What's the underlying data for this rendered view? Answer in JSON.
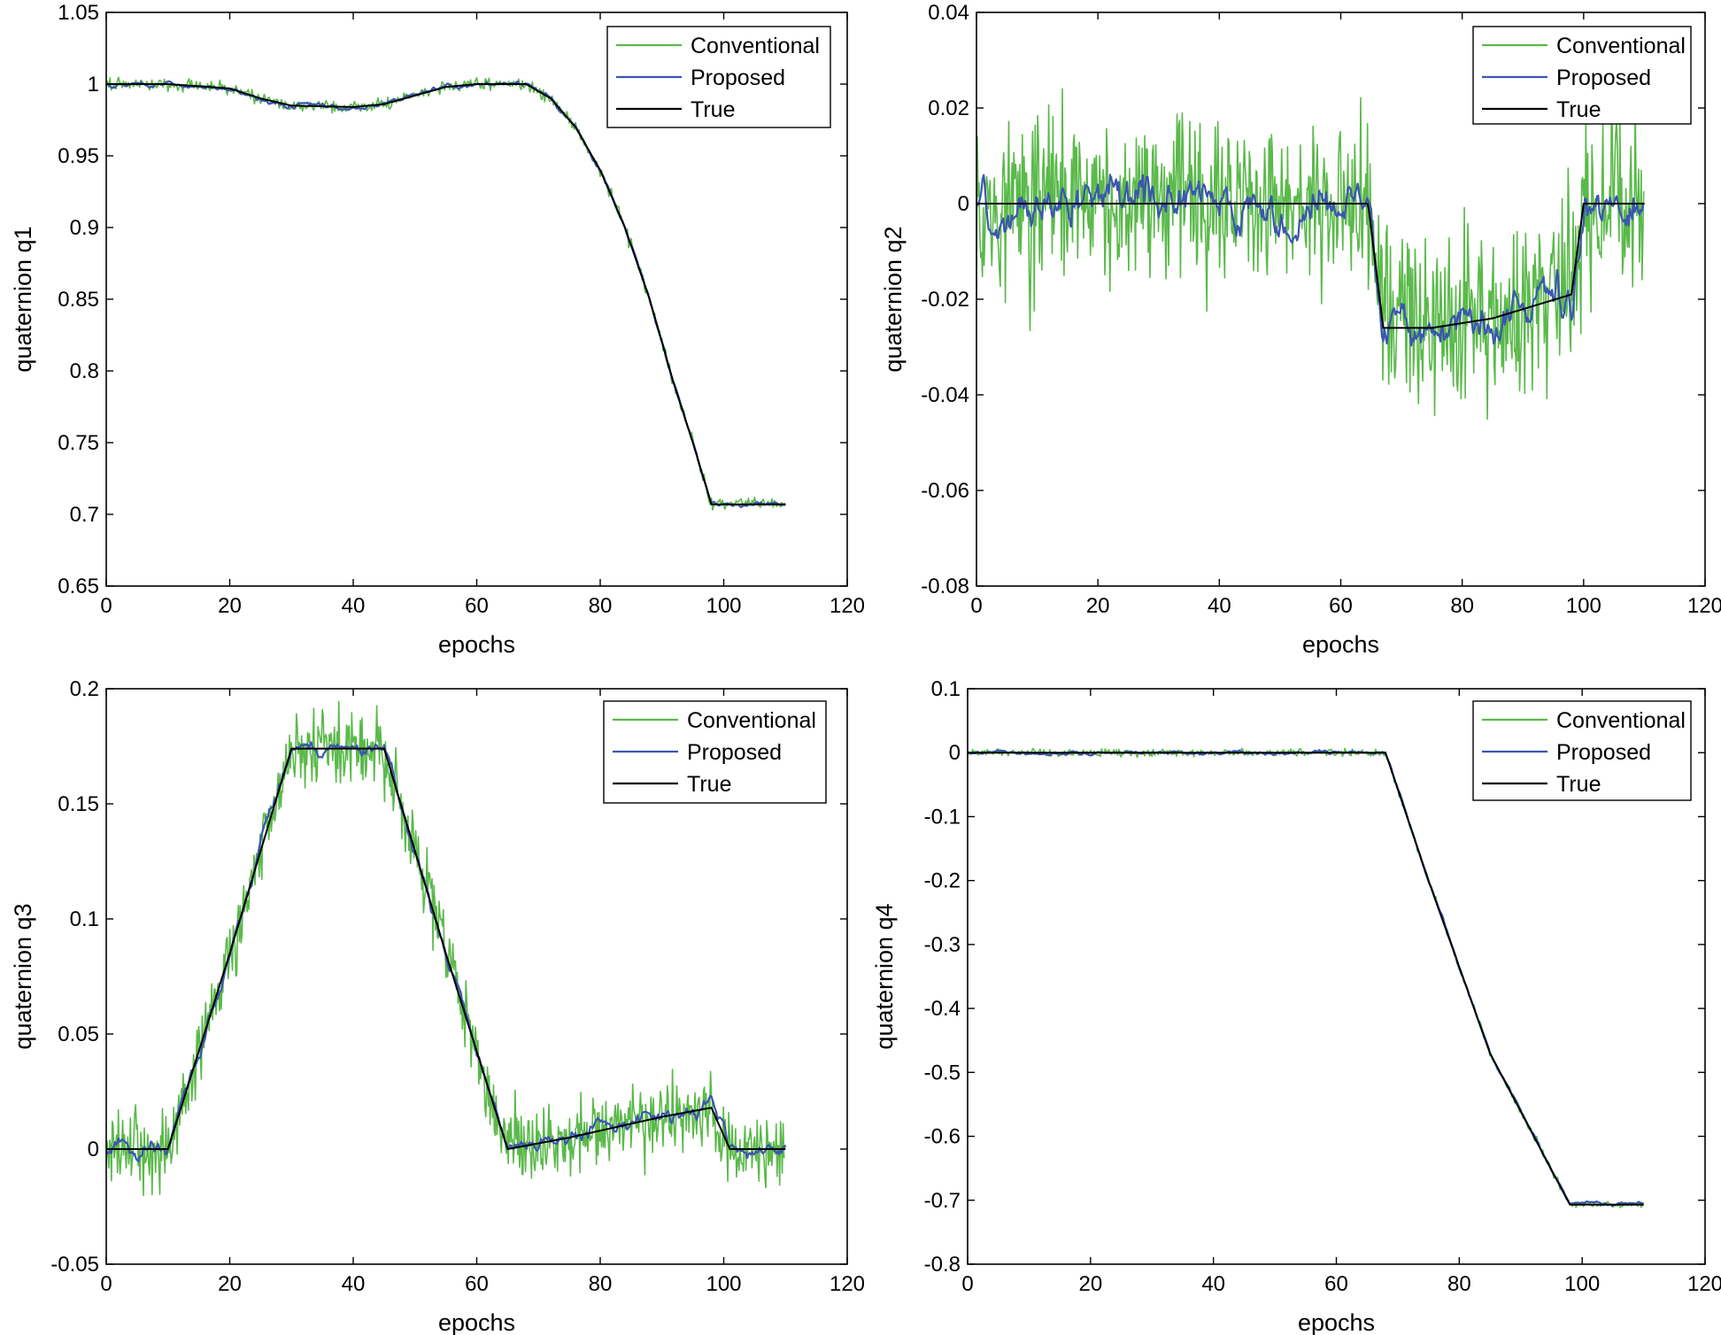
{
  "chart_data": [
    {
      "type": "line",
      "title": "",
      "xlabel": "epochs",
      "ylabel": "quaternion q1",
      "xlim": [
        0,
        120
      ],
      "ylim": [
        0.65,
        1.05
      ],
      "xticks": [
        "0",
        "20",
        "40",
        "60",
        "80",
        "100",
        "120"
      ],
      "yticks": [
        "0.65",
        "0.7",
        "0.75",
        "0.8",
        "0.85",
        "0.9",
        "0.95",
        "1",
        "1.05"
      ],
      "legend": [
        "Conventional",
        "Proposed",
        "True"
      ],
      "legend_position": "top-right",
      "grid": false,
      "series": [
        {
          "name": "Conventional",
          "color": "#5ab94a",
          "noise": 0.003,
          "values": [
            [
              0,
              1
            ],
            [
              10,
              1
            ],
            [
              20,
              0.997
            ],
            [
              25,
              0.99
            ],
            [
              30,
              0.985
            ],
            [
              40,
              0.984
            ],
            [
              45,
              0.986
            ],
            [
              50,
              0.992
            ],
            [
              55,
              0.998
            ],
            [
              60,
              1
            ],
            [
              68,
              1
            ],
            [
              72,
              0.99
            ],
            [
              76,
              0.97
            ],
            [
              80,
              0.94
            ],
            [
              84,
              0.9
            ],
            [
              88,
              0.85
            ],
            [
              92,
              0.79
            ],
            [
              95,
              0.75
            ],
            [
              98,
              0.707
            ],
            [
              110,
              0.707
            ]
          ]
        },
        {
          "name": "Proposed",
          "color": "#3a56b0",
          "noise": 0.0015,
          "values": [
            [
              0,
              1
            ],
            [
              10,
              1
            ],
            [
              20,
              0.997
            ],
            [
              25,
              0.99
            ],
            [
              30,
              0.985
            ],
            [
              40,
              0.984
            ],
            [
              45,
              0.986
            ],
            [
              50,
              0.992
            ],
            [
              55,
              0.998
            ],
            [
              60,
              1
            ],
            [
              68,
              1
            ],
            [
              72,
              0.99
            ],
            [
              76,
              0.97
            ],
            [
              80,
              0.94
            ],
            [
              84,
              0.9
            ],
            [
              88,
              0.85
            ],
            [
              92,
              0.79
            ],
            [
              95,
              0.75
            ],
            [
              98,
              0.707
            ],
            [
              110,
              0.707
            ]
          ]
        },
        {
          "name": "True",
          "color": "#000000",
          "noise": 0,
          "values": [
            [
              0,
              1
            ],
            [
              10,
              1
            ],
            [
              20,
              0.997
            ],
            [
              25,
              0.99
            ],
            [
              30,
              0.985
            ],
            [
              40,
              0.984
            ],
            [
              45,
              0.986
            ],
            [
              50,
              0.992
            ],
            [
              55,
              0.998
            ],
            [
              60,
              1
            ],
            [
              68,
              1
            ],
            [
              72,
              0.99
            ],
            [
              76,
              0.97
            ],
            [
              80,
              0.94
            ],
            [
              84,
              0.9
            ],
            [
              88,
              0.85
            ],
            [
              92,
              0.79
            ],
            [
              95,
              0.75
            ],
            [
              98,
              0.707
            ],
            [
              110,
              0.707
            ]
          ]
        }
      ]
    },
    {
      "type": "line",
      "title": "",
      "xlabel": "epochs",
      "ylabel": "quaternion q2",
      "xlim": [
        0,
        120
      ],
      "ylim": [
        -0.08,
        0.04
      ],
      "xticks": [
        "0",
        "20",
        "40",
        "60",
        "80",
        "100",
        "120"
      ],
      "yticks": [
        "-0.08",
        "-0.06",
        "-0.04",
        "-0.02",
        "0",
        "0.02",
        "0.04"
      ],
      "legend": [
        "Conventional",
        "Proposed",
        "True"
      ],
      "legend_position": "top-right",
      "grid": false,
      "series": [
        {
          "name": "Conventional",
          "color": "#5ab94a",
          "noise": 0.013,
          "values": [
            [
              0,
              0
            ],
            [
              64.5,
              0
            ],
            [
              67,
              -0.026
            ],
            [
              75,
              -0.026
            ],
            [
              85,
              -0.024
            ],
            [
              98,
              -0.019
            ],
            [
              100,
              0
            ],
            [
              110,
              0
            ]
          ]
        },
        {
          "name": "Proposed",
          "color": "#3a56b0",
          "noise": 0.004,
          "values": [
            [
              0,
              0
            ],
            [
              64.5,
              0
            ],
            [
              67,
              -0.026
            ],
            [
              75,
              -0.026
            ],
            [
              85,
              -0.024
            ],
            [
              98,
              -0.019
            ],
            [
              100,
              0
            ],
            [
              110,
              0
            ]
          ]
        },
        {
          "name": "True",
          "color": "#000000",
          "noise": 0,
          "values": [
            [
              0,
              0
            ],
            [
              64.5,
              0
            ],
            [
              67,
              -0.026
            ],
            [
              75,
              -0.026
            ],
            [
              85,
              -0.024
            ],
            [
              98,
              -0.019
            ],
            [
              100,
              0
            ],
            [
              110,
              0
            ]
          ]
        }
      ]
    },
    {
      "type": "line",
      "title": "",
      "xlabel": "epochs",
      "ylabel": "quaternion q3",
      "xlim": [
        0,
        120
      ],
      "ylim": [
        -0.05,
        0.2
      ],
      "xticks": [
        "0",
        "20",
        "40",
        "60",
        "80",
        "100",
        "120"
      ],
      "yticks": [
        "-0.05",
        "0",
        "0.05",
        "0.1",
        "0.15",
        "0.2"
      ],
      "legend": [
        "Conventional",
        "Proposed",
        "True"
      ],
      "legend_position": "top-right",
      "grid": false,
      "series": [
        {
          "name": "Conventional",
          "color": "#5ab94a",
          "noise": 0.011,
          "values": [
            [
              0,
              0
            ],
            [
              10,
              0
            ],
            [
              20,
              0.085
            ],
            [
              30,
              0.174
            ],
            [
              45,
              0.174
            ],
            [
              55,
              0.085
            ],
            [
              65,
              0
            ],
            [
              75,
              0.005
            ],
            [
              90,
              0.014
            ],
            [
              98,
              0.018
            ],
            [
              101,
              0
            ],
            [
              110,
              0
            ]
          ]
        },
        {
          "name": "Proposed",
          "color": "#3a56b0",
          "noise": 0.003,
          "values": [
            [
              0,
              0
            ],
            [
              10,
              0
            ],
            [
              20,
              0.085
            ],
            [
              30,
              0.174
            ],
            [
              45,
              0.174
            ],
            [
              55,
              0.085
            ],
            [
              65,
              0
            ],
            [
              75,
              0.005
            ],
            [
              90,
              0.014
            ],
            [
              98,
              0.018
            ],
            [
              101,
              0
            ],
            [
              110,
              0
            ]
          ]
        },
        {
          "name": "True",
          "color": "#000000",
          "noise": 0,
          "values": [
            [
              0,
              0
            ],
            [
              10,
              0
            ],
            [
              20,
              0.085
            ],
            [
              30,
              0.174
            ],
            [
              45,
              0.174
            ],
            [
              55,
              0.085
            ],
            [
              65,
              0
            ],
            [
              75,
              0.005
            ],
            [
              90,
              0.014
            ],
            [
              98,
              0.018
            ],
            [
              101,
              0
            ],
            [
              110,
              0
            ]
          ]
        }
      ]
    },
    {
      "type": "line",
      "title": "",
      "xlabel": "epochs",
      "ylabel": "quaternion q4",
      "xlim": [
        0,
        120
      ],
      "ylim": [
        -0.8,
        0.1
      ],
      "xticks": [
        "0",
        "20",
        "40",
        "60",
        "80",
        "100",
        "120"
      ],
      "yticks": [
        "-0.8",
        "-0.7",
        "-0.6",
        "-0.5",
        "-0.4",
        "-0.3",
        "-0.2",
        "-0.1",
        "0",
        "0.1"
      ],
      "legend": [
        "Conventional",
        "Proposed",
        "True"
      ],
      "legend_position": "top-right",
      "grid": false,
      "series": [
        {
          "name": "Conventional",
          "color": "#5ab94a",
          "noise": 0.004,
          "values": [
            [
              0,
              0
            ],
            [
              68,
              0
            ],
            [
              75,
              -0.2
            ],
            [
              85,
              -0.47
            ],
            [
              98,
              -0.707
            ],
            [
              110,
              -0.707
            ]
          ]
        },
        {
          "name": "Proposed",
          "color": "#3a56b0",
          "noise": 0.0025,
          "values": [
            [
              0,
              0
            ],
            [
              68,
              0
            ],
            [
              75,
              -0.2
            ],
            [
              85,
              -0.47
            ],
            [
              98,
              -0.707
            ],
            [
              110,
              -0.707
            ]
          ]
        },
        {
          "name": "True",
          "color": "#000000",
          "noise": 0,
          "values": [
            [
              0,
              0
            ],
            [
              68,
              0
            ],
            [
              75,
              -0.2
            ],
            [
              85,
              -0.47
            ],
            [
              98,
              -0.707
            ],
            [
              110,
              -0.707
            ]
          ]
        }
      ]
    }
  ]
}
